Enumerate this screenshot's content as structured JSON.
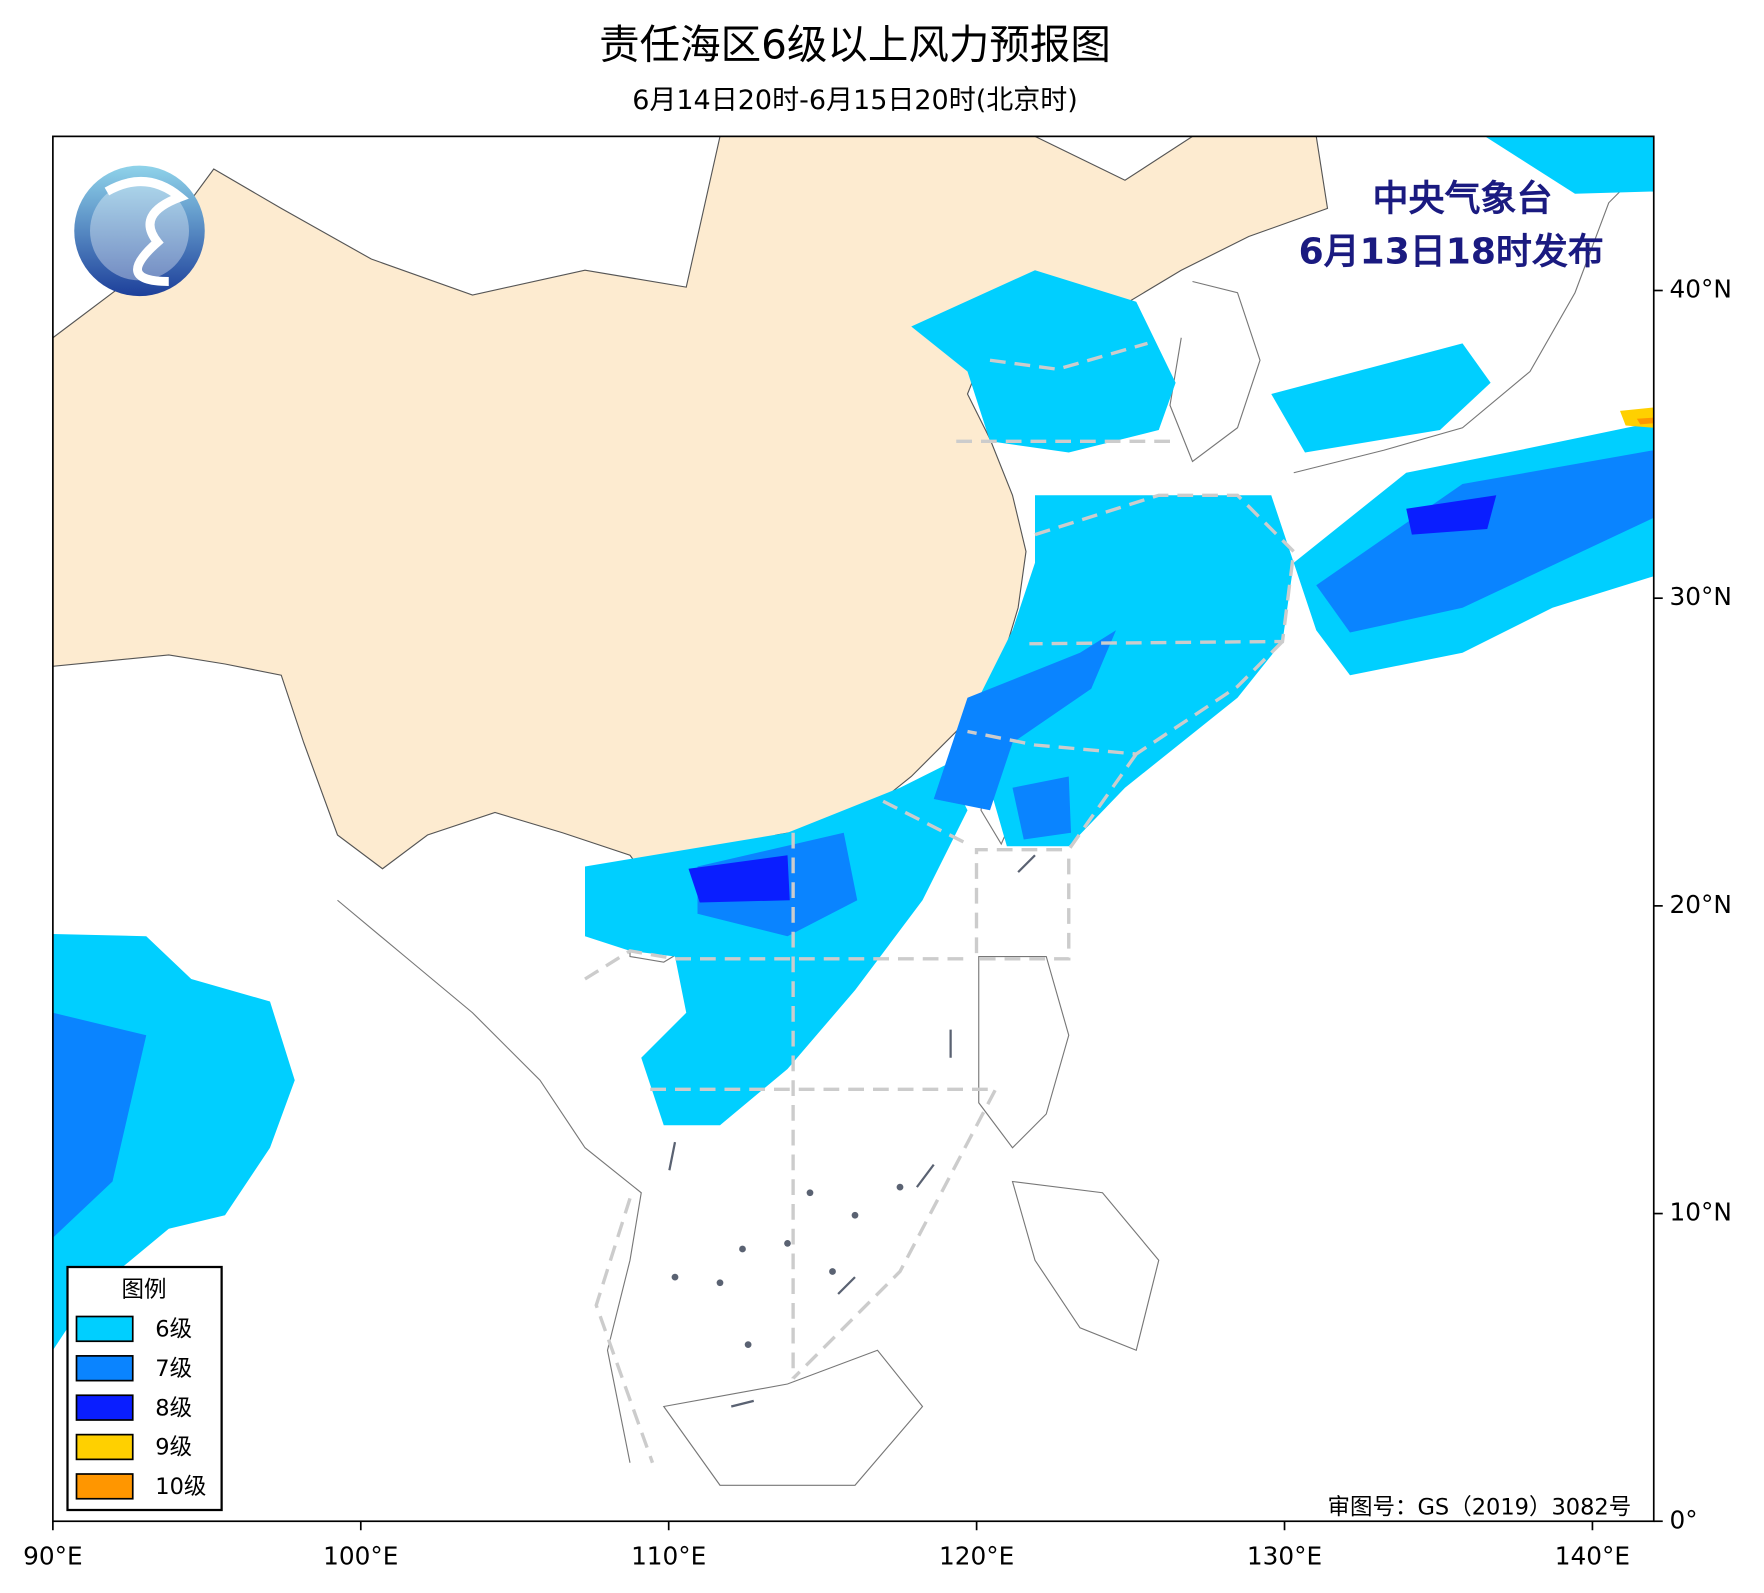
{
  "header": {
    "title": "责任海区6级以上风力预报图",
    "subtitle": "6月14日20时-6月15日20时(北京时)"
  },
  "map": {
    "issuer": "中央气象台",
    "issued": "6月13日18时发布",
    "x_ticks": [
      "90°E",
      "100°E",
      "110°E",
      "120°E",
      "130°E",
      "140°E"
    ],
    "y_ticks": [
      "0°",
      "10°N",
      "20°N",
      "30°N",
      "40°N"
    ],
    "approval": "审图号：GS（2019）3082号"
  },
  "legend": {
    "title": "图例",
    "items": [
      {
        "label": "6级",
        "color": "#00cfff"
      },
      {
        "label": "7级",
        "color": "#0a84ff"
      },
      {
        "label": "8级",
        "color": "#0a1eff"
      },
      {
        "label": "9级",
        "color": "#ffd000"
      },
      {
        "label": "10级",
        "color": "#ff9600"
      }
    ]
  }
}
